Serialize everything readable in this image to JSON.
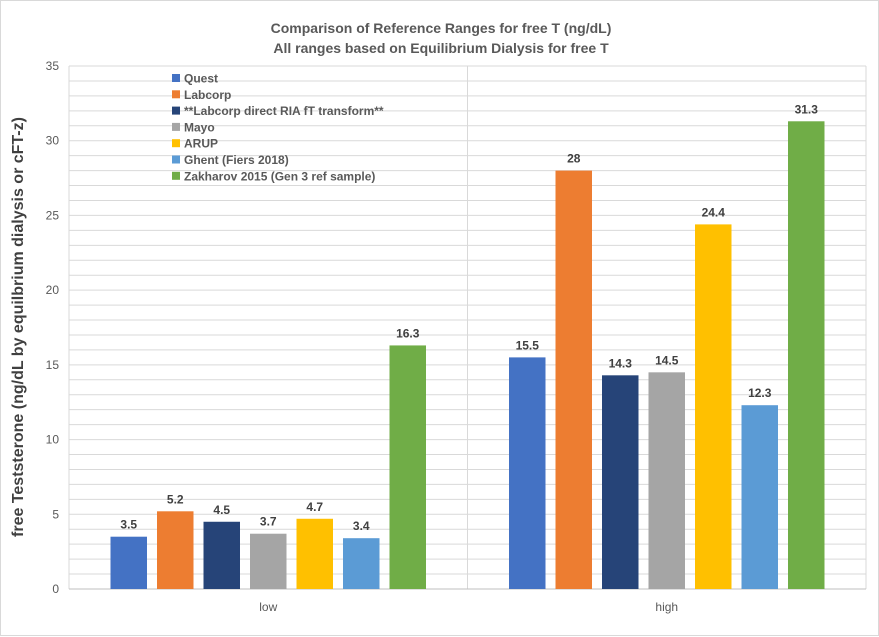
{
  "chart_data": {
    "type": "bar",
    "title": "Comparison of Reference Ranges for free T (ng/dL)",
    "subtitle": "All ranges based on Equilibrium Dialysis for free T",
    "xlabel": "",
    "ylabel": "free Teststerone  (ng/dL by equilbrium dialysis  or  cFT-z)",
    "ylim": [
      0,
      35
    ],
    "yticks": [
      0,
      5,
      10,
      15,
      20,
      25,
      30,
      35
    ],
    "grid": true,
    "legend_position": "top-left",
    "categories": [
      "low",
      "high"
    ],
    "series": [
      {
        "name": "Quest",
        "values": [
          3.5,
          15.5
        ],
        "color": "#4472c4"
      },
      {
        "name": "Labcorp",
        "values": [
          5.2,
          28
        ],
        "color": "#ed7d31"
      },
      {
        "name": "**Labcorp direct RIA fT transform**",
        "values": [
          4.5,
          14.3
        ],
        "color": "#264478"
      },
      {
        "name": "Mayo",
        "values": [
          3.7,
          14.5
        ],
        "color": "#a5a5a5"
      },
      {
        "name": "ARUP",
        "values": [
          4.7,
          24.4
        ],
        "color": "#ffc000"
      },
      {
        "name": "Ghent (Fiers 2018)",
        "values": [
          3.4,
          12.3
        ],
        "color": "#5b9bd5"
      },
      {
        "name": "Zakharov 2015  (Gen 3 ref sample)",
        "values": [
          16.3,
          31.3
        ],
        "color": "#70ad47"
      }
    ]
  }
}
